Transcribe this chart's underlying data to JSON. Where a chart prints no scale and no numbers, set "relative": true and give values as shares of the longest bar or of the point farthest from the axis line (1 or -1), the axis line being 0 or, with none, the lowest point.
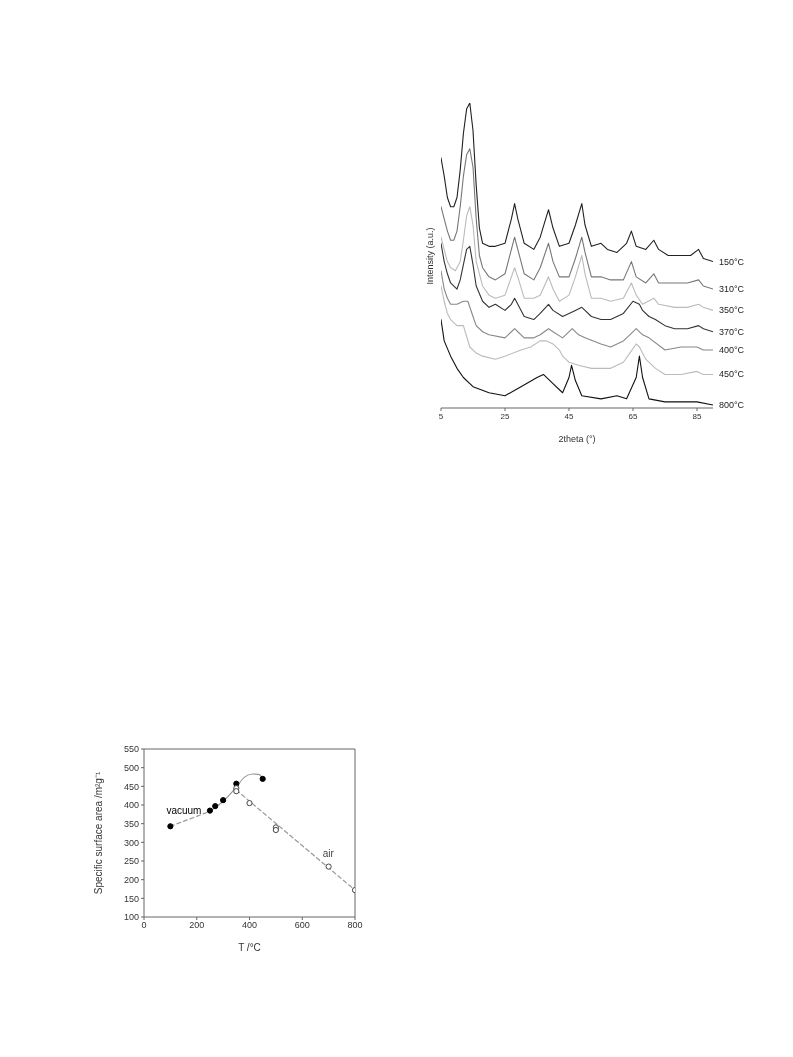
{
  "chart_data": [
    {
      "type": "line",
      "relative": true,
      "marker": "none",
      "xlabel": "2theta (°)",
      "ylabel": "Intensity (a.u.)",
      "xlim": [
        5,
        90
      ],
      "xticks": [
        5,
        25,
        45,
        65,
        85
      ],
      "series": [
        {
          "name": "150°C",
          "color": "#222222",
          "x": [
            5,
            6,
            7,
            8,
            9,
            10,
            11,
            12,
            13,
            14,
            15,
            16,
            17,
            18,
            20,
            22,
            25,
            27,
            28,
            29,
            31,
            34,
            36,
            38,
            38.6,
            40,
            42,
            45,
            47,
            49,
            50,
            52,
            55,
            57,
            60,
            63,
            64.5,
            66,
            69,
            71.5,
            73,
            76,
            80,
            83,
            85.5,
            87,
            90
          ],
          "values": [
            0.82,
            0.76,
            0.69,
            0.66,
            0.66,
            0.69,
            0.78,
            0.9,
            0.98,
            1,
            0.91,
            0.73,
            0.59,
            0.54,
            0.53,
            0.53,
            0.54,
            0.62,
            0.67,
            0.62,
            0.54,
            0.52,
            0.56,
            0.63,
            0.65,
            0.59,
            0.53,
            0.54,
            0.6,
            0.67,
            0.6,
            0.53,
            0.54,
            0.52,
            0.51,
            0.54,
            0.58,
            0.53,
            0.52,
            0.55,
            0.52,
            0.5,
            0.5,
            0.5,
            0.52,
            0.49,
            0.48
          ]
        },
        {
          "name": "310°C",
          "color": "#777777",
          "x": [
            5,
            6,
            7,
            8,
            9,
            10,
            11,
            12,
            13,
            14,
            15,
            16,
            17,
            18,
            20,
            22,
            25,
            27,
            28,
            29,
            31,
            34,
            36,
            38.6,
            40,
            42,
            45,
            47,
            49,
            50,
            52,
            55,
            58,
            62,
            64.5,
            66,
            69,
            71.5,
            73,
            78,
            82,
            85.5,
            87,
            90
          ],
          "values": [
            0.66,
            0.62,
            0.58,
            0.55,
            0.55,
            0.58,
            0.66,
            0.76,
            0.83,
            0.85,
            0.79,
            0.62,
            0.5,
            0.46,
            0.43,
            0.42,
            0.44,
            0.52,
            0.56,
            0.52,
            0.44,
            0.42,
            0.46,
            0.54,
            0.48,
            0.43,
            0.43,
            0.49,
            0.56,
            0.51,
            0.43,
            0.43,
            0.42,
            0.42,
            0.48,
            0.43,
            0.41,
            0.44,
            0.41,
            0.41,
            0.41,
            0.42,
            0.4,
            0.39
          ]
        },
        {
          "name": "350°C",
          "color": "#bbbbbb",
          "x": [
            5,
            6,
            7,
            8,
            9.5,
            11,
            12,
            13,
            14,
            15,
            16,
            18,
            20,
            22,
            25,
            27,
            28,
            29,
            31,
            34,
            36,
            38.6,
            40,
            42,
            45,
            47,
            49,
            50,
            52,
            55,
            58,
            62,
            64.5,
            66,
            68,
            71.5,
            73,
            78,
            82,
            85.5,
            87,
            90
          ],
          "values": [
            0.56,
            0.52,
            0.48,
            0.46,
            0.45,
            0.48,
            0.55,
            0.63,
            0.66,
            0.6,
            0.48,
            0.4,
            0.37,
            0.36,
            0.37,
            0.43,
            0.46,
            0.43,
            0.36,
            0.36,
            0.37,
            0.43,
            0.39,
            0.35,
            0.37,
            0.43,
            0.5,
            0.44,
            0.36,
            0.36,
            0.35,
            0.36,
            0.41,
            0.37,
            0.34,
            0.36,
            0.34,
            0.33,
            0.33,
            0.34,
            0.33,
            0.32
          ]
        },
        {
          "name": "370°C",
          "color": "#333333",
          "x": [
            5,
            6,
            7,
            8,
            10,
            11,
            12,
            13,
            14,
            15,
            16,
            18,
            20,
            22,
            25,
            27,
            28,
            29,
            31,
            34,
            36,
            38.6,
            40,
            43,
            47,
            49,
            50,
            52,
            55,
            58,
            62,
            65,
            67,
            68,
            70,
            72,
            75,
            78,
            82,
            85.5,
            87,
            90
          ],
          "values": [
            0.54,
            0.48,
            0.44,
            0.41,
            0.39,
            0.42,
            0.47,
            0.52,
            0.53,
            0.47,
            0.4,
            0.35,
            0.33,
            0.34,
            0.32,
            0.34,
            0.36,
            0.34,
            0.3,
            0.29,
            0.31,
            0.34,
            0.32,
            0.3,
            0.32,
            0.33,
            0.32,
            0.3,
            0.29,
            0.29,
            0.31,
            0.35,
            0.34,
            0.32,
            0.3,
            0.29,
            0.27,
            0.26,
            0.26,
            0.27,
            0.26,
            0.25
          ]
        },
        {
          "name": "400°C",
          "color": "#888888",
          "x": [
            5,
            6,
            7,
            8,
            10,
            12,
            13.4,
            15,
            16,
            18,
            20,
            25,
            27,
            28,
            29,
            31,
            34,
            36,
            38.6,
            40,
            43,
            46,
            48,
            50,
            55,
            58,
            62,
            64,
            66,
            68,
            70,
            75,
            80,
            85,
            87,
            90
          ],
          "values": [
            0.45,
            0.39,
            0.36,
            0.34,
            0.34,
            0.35,
            0.35,
            0.3,
            0.27,
            0.25,
            0.24,
            0.23,
            0.25,
            0.26,
            0.25,
            0.23,
            0.23,
            0.24,
            0.26,
            0.25,
            0.23,
            0.26,
            0.24,
            0.23,
            0.21,
            0.2,
            0.22,
            0.24,
            0.26,
            0.24,
            0.23,
            0.19,
            0.2,
            0.2,
            0.19,
            0.19
          ]
        },
        {
          "name": "450°C",
          "color": "#bbbbbb",
          "x": [
            5,
            6,
            7,
            8,
            10,
            12,
            14,
            16,
            18,
            22,
            25,
            30,
            33,
            36,
            38,
            40,
            42,
            43,
            44,
            45,
            48,
            52,
            58,
            62,
            64,
            66,
            67,
            69,
            72,
            75,
            80,
            85,
            87,
            90
          ],
          "values": [
            0.4,
            0.35,
            0.31,
            0.29,
            0.27,
            0.27,
            0.2,
            0.18,
            0.17,
            0.16,
            0.17,
            0.19,
            0.2,
            0.22,
            0.22,
            0.21,
            0.19,
            0.17,
            0.16,
            0.15,
            0.14,
            0.13,
            0.13,
            0.15,
            0.18,
            0.21,
            0.2,
            0.16,
            0.13,
            0.11,
            0.11,
            0.12,
            0.11,
            0.11
          ]
        },
        {
          "name": "800°C",
          "color": "#111111",
          "x": [
            5,
            6,
            8,
            10,
            12,
            15,
            20,
            25,
            30,
            35,
            37,
            40,
            43,
            45,
            45.8,
            47,
            49,
            55,
            60,
            63,
            66,
            67,
            68,
            70,
            75,
            85,
            90
          ],
          "values": [
            0.29,
            0.22,
            0.17,
            0.13,
            0.1,
            0.07,
            0.05,
            0.04,
            0.07,
            0.1,
            0.11,
            0.08,
            0.05,
            0.1,
            0.14,
            0.09,
            0.04,
            0.03,
            0.04,
            0.03,
            0.1,
            0.17,
            0.1,
            0.03,
            0.02,
            0.02,
            0.01
          ]
        }
      ]
    },
    {
      "type": "scatter",
      "xlabel": "T /°C",
      "ylabel": "Specific surface area /m²g⁻¹",
      "xlim": [
        0,
        800
      ],
      "xticks": [
        0,
        200,
        400,
        600,
        800
      ],
      "ylim": [
        100,
        550
      ],
      "yticks": [
        100,
        150,
        200,
        250,
        300,
        350,
        400,
        450,
        500,
        550
      ],
      "series": [
        {
          "name": "vacuum",
          "marker": "circle",
          "color": "#000000",
          "x": [
            100,
            250,
            270,
            300,
            350,
            450
          ],
          "values": [
            343,
            385,
            397,
            413,
            457,
            470
          ]
        },
        {
          "name": "air",
          "marker": "circle",
          "color": "#444444",
          "x": [
            350,
            350,
            400,
            500,
            500,
            700,
            800
          ],
          "values": [
            445,
            437,
            405,
            340,
            333,
            235,
            172
          ]
        },
        {
          "type": "line",
          "line_style": "dashed",
          "color": "#999999",
          "x": [
            100,
            250
          ],
          "values": [
            343,
            383
          ]
        },
        {
          "type": "line",
          "line_style": "solid",
          "color": "#999999",
          "x": [
            250,
            300,
            350,
            380,
            410,
            435,
            450
          ],
          "values": [
            383,
            410,
            448,
            474,
            483,
            482,
            470
          ]
        },
        {
          "type": "line",
          "line_style": "dashed",
          "color": "#999999",
          "x": [
            350,
            800
          ],
          "values": [
            440,
            172
          ]
        }
      ]
    }
  ]
}
